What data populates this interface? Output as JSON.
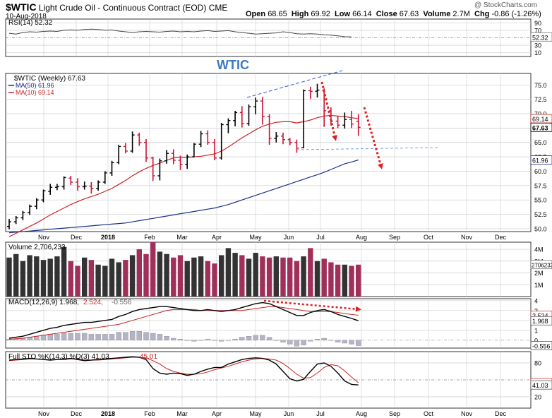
{
  "header": {
    "symbol": "$WTIC",
    "name": "Light Crude Oil - Continuous Contract (EOD)",
    "exchange": "CME",
    "date": "10-Aug-2018",
    "watermark": "@ StockCharts.com",
    "open_label": "Open",
    "open": "68.65",
    "high_label": "High",
    "high": "69.92",
    "low_label": "Low",
    "low": "66.14",
    "close_label": "Close",
    "close": "67.63",
    "volume_label": "Volume",
    "volume": "2.7M",
    "chg_label": "Chg",
    "chg": "-0.86 (-1.26%)"
  },
  "annotation": "WTIC",
  "colors": {
    "up": "#000000",
    "down": "#cc1133",
    "ma50": "#1a2f8a",
    "ma10": "#cc2222",
    "vol_up": "#333333",
    "vol_down": "#a0305a",
    "arrow": "#e02020",
    "trend": "#3355dd",
    "grid": "#cccccc"
  },
  "chart_data": [
    {
      "panel": "rsi",
      "type": "line",
      "legend": "RSI(14) 52.32",
      "ylim": [
        0,
        100
      ],
      "ticks": [
        "90",
        "70",
        "50",
        "52.32",
        "30",
        "10"
      ],
      "levels": [
        70,
        30
      ],
      "values": [
        62,
        60,
        64,
        66,
        65,
        67,
        68,
        67,
        70,
        71,
        70,
        72,
        73,
        72,
        70,
        71,
        68,
        66,
        64,
        66,
        67,
        66,
        65,
        67,
        68,
        66,
        67,
        66,
        68,
        69,
        67,
        68,
        69,
        66,
        64,
        62,
        60,
        61,
        62,
        63,
        66,
        64,
        61,
        60,
        61,
        60,
        58,
        57,
        55,
        53,
        52.32
      ]
    },
    {
      "panel": "price",
      "type": "candlestick",
      "legend": [
        "$WTIC (Weekly) 67.63",
        "MA(50) 61.96",
        "MA(10) 69.14"
      ],
      "ylim": [
        49.5,
        77
      ],
      "y_ticks": [
        75.0,
        72.5,
        70.0,
        67.5,
        65.0,
        62.5,
        60.0,
        57.5,
        55.0,
        52.5,
        50.0
      ],
      "tags": {
        "ma10": "69.14",
        "close": "67.63",
        "ma50": "61.96"
      },
      "x_labels": [
        "Nov",
        "Dec",
        "2018",
        "Feb",
        "Mar",
        "Apr",
        "May",
        "Jun",
        "Jul",
        "Aug",
        "Sep",
        "Oct",
        "Nov",
        "Dec"
      ],
      "ohlc": [
        [
          50.4,
          51.7,
          49.9,
          51.2
        ],
        [
          51.2,
          52.2,
          50.8,
          51.9
        ],
        [
          51.9,
          53.1,
          51.5,
          52.8
        ],
        [
          52.8,
          54.2,
          52.4,
          53.9
        ],
        [
          53.9,
          55.3,
          53.4,
          55.0
        ],
        [
          55.0,
          56.8,
          54.6,
          56.6
        ],
        [
          56.5,
          57.8,
          55.9,
          57.2
        ],
        [
          57.2,
          57.8,
          56.7,
          57.3
        ],
        [
          57.3,
          59.1,
          56.8,
          58.9
        ],
        [
          58.8,
          59.2,
          57.6,
          58.1
        ],
        [
          58.1,
          58.8,
          56.6,
          57.3
        ],
        [
          57.3,
          58.2,
          56.8,
          57.4
        ],
        [
          57.4,
          58.1,
          56.1,
          57.0
        ],
        [
          57.0,
          58.4,
          56.6,
          58.1
        ],
        [
          58.1,
          60.0,
          57.8,
          59.7
        ],
        [
          59.7,
          61.8,
          59.2,
          61.5
        ],
        [
          61.5,
          64.6,
          61.2,
          64.3
        ],
        [
          64.3,
          64.9,
          63.1,
          63.5
        ],
        [
          63.5,
          66.9,
          63.2,
          66.3
        ],
        [
          66.3,
          66.7,
          64.4,
          65.0
        ],
        [
          65.0,
          65.6,
          61.6,
          62.3
        ],
        [
          62.3,
          62.5,
          58.3,
          59.2
        ],
        [
          59.2,
          62.2,
          58.4,
          61.8
        ],
        [
          61.8,
          63.7,
          61.3,
          63.1
        ],
        [
          63.1,
          63.8,
          61.2,
          61.9
        ],
        [
          61.9,
          62.7,
          60.2,
          61.2
        ],
        [
          61.2,
          62.9,
          60.4,
          62.5
        ],
        [
          62.5,
          64.9,
          62.4,
          64.7
        ],
        [
          64.7,
          67.0,
          64.2,
          66.5
        ],
        [
          66.5,
          67.1,
          64.6,
          65.0
        ],
        [
          65.0,
          65.6,
          61.9,
          62.3
        ],
        [
          62.3,
          68.4,
          62.0,
          68.1
        ],
        [
          68.1,
          69.2,
          66.6,
          68.8
        ],
        [
          68.8,
          70.5,
          67.8,
          70.2
        ],
        [
          70.2,
          71.3,
          67.6,
          68.3
        ],
        [
          68.3,
          71.6,
          67.9,
          71.2
        ],
        [
          71.2,
          72.8,
          69.9,
          72.2
        ],
        [
          72.2,
          72.9,
          68.1,
          69.5
        ],
        [
          69.5,
          69.9,
          64.6,
          65.7
        ],
        [
          65.7,
          66.8,
          65.0,
          66.1
        ],
        [
          66.1,
          66.7,
          64.7,
          65.5
        ],
        [
          65.5,
          65.8,
          64.5,
          65.0
        ],
        [
          65.0,
          65.5,
          63.2,
          64.0
        ],
        [
          64.1,
          74.2,
          64.0,
          74.0
        ],
        [
          74.0,
          74.7,
          72.6,
          73.9
        ],
        [
          73.9,
          75.2,
          72.8,
          74.1
        ],
        [
          74.1,
          74.4,
          67.7,
          70.5
        ],
        [
          70.5,
          71.1,
          67.9,
          68.7
        ],
        [
          68.7,
          69.6,
          67.5,
          68.0
        ],
        [
          68.0,
          70.2,
          67.4,
          69.0
        ],
        [
          69.0,
          70.5,
          67.5,
          68.2
        ],
        [
          68.65,
          69.92,
          66.14,
          67.63
        ]
      ],
      "ma10": [
        48.6,
        49.2,
        49.8,
        50.4,
        51.0,
        51.7,
        52.4,
        53.0,
        53.6,
        54.2,
        54.7,
        55.2,
        55.6,
        56.0,
        56.5,
        57.0,
        57.7,
        58.4,
        59.2,
        59.9,
        60.5,
        61.0,
        61.4,
        61.9,
        62.3,
        62.4,
        62.4,
        62.5,
        62.6,
        62.8,
        63.0,
        63.5,
        64.2,
        65.0,
        65.8,
        66.5,
        67.2,
        67.8,
        68.2,
        68.5,
        68.6,
        68.6,
        68.4,
        68.6,
        68.9,
        69.3,
        69.6,
        69.7,
        69.6,
        69.5,
        69.3,
        69.14
      ],
      "ma50": [
        49.3,
        49.4,
        49.5,
        49.6,
        49.7,
        49.8,
        49.9,
        50.0,
        50.1,
        50.2,
        50.3,
        50.4,
        50.5,
        50.6,
        50.7,
        50.8,
        50.9,
        51.0,
        51.2,
        51.4,
        51.6,
        51.8,
        52.0,
        52.2,
        52.4,
        52.6,
        52.8,
        53.0,
        53.2,
        53.4,
        53.6,
        53.9,
        54.2,
        54.6,
        55.0,
        55.4,
        55.8,
        56.2,
        56.6,
        57.0,
        57.4,
        57.8,
        58.2,
        58.6,
        59.0,
        59.4,
        59.8,
        60.3,
        60.8,
        61.3,
        61.6,
        61.96
      ]
    },
    {
      "panel": "volume",
      "type": "bar",
      "legend": "Volume 2,706,233",
      "ylim": [
        0,
        4.6
      ],
      "ticks": [
        "4M",
        "3M",
        "2706233",
        "2M",
        "1M"
      ],
      "values": [
        3.3,
        3.6,
        3.0,
        3.5,
        3.4,
        3.1,
        3.2,
        3.4,
        4.2,
        3.0,
        2.6,
        3.3,
        3.1,
        2.7,
        2.6,
        3.2,
        2.9,
        3.1,
        3.5,
        4.0,
        3.6,
        4.6,
        3.8,
        3.6,
        3.3,
        3.5,
        3.0,
        3.3,
        3.4,
        3.0,
        2.8,
        3.5,
        4.1,
        3.7,
        3.5,
        3.2,
        3.7,
        3.4,
        3.3,
        3.4,
        3.3,
        3.3,
        3.0,
        3.4,
        4.1,
        3.0,
        3.2,
        2.9,
        2.7,
        2.7,
        2.6,
        2.7
      ]
    },
    {
      "panel": "macd",
      "type": "line",
      "legend": [
        "MACD(12,26,9) 1.968,",
        "2.524,",
        "-0.556"
      ],
      "ylim": [
        -0.8,
        4.2
      ],
      "ticks": [
        "4",
        "3",
        "2.524",
        "1.968",
        "1",
        "0",
        "-0.556"
      ],
      "macd": [
        0.2,
        0.3,
        0.4,
        0.6,
        0.8,
        1.0,
        1.2,
        1.3,
        1.5,
        1.6,
        1.7,
        1.8,
        1.8,
        1.9,
        2.0,
        2.1,
        2.4,
        2.6,
        2.9,
        3.1,
        3.2,
        3.3,
        3.4,
        3.4,
        3.3,
        3.2,
        3.1,
        3.0,
        3.0,
        3.1,
        3.0,
        2.9,
        3.0,
        3.1,
        3.3,
        3.5,
        3.7,
        3.8,
        3.7,
        3.4,
        3.1,
        2.8,
        2.5,
        2.5,
        2.8,
        3.0,
        3.1,
        2.9,
        2.6,
        2.4,
        2.2,
        1.968
      ],
      "signal": [
        0.1,
        0.15,
        0.2,
        0.3,
        0.4,
        0.5,
        0.6,
        0.7,
        0.8,
        0.9,
        1.0,
        1.1,
        1.2,
        1.3,
        1.4,
        1.5,
        1.6,
        1.8,
        2.0,
        2.2,
        2.4,
        2.6,
        2.8,
        3.0,
        3.1,
        3.1,
        3.1,
        3.1,
        3.0,
        3.0,
        3.0,
        3.0,
        3.0,
        3.0,
        3.0,
        3.1,
        3.2,
        3.3,
        3.4,
        3.4,
        3.3,
        3.2,
        3.1,
        3.0,
        2.9,
        2.9,
        2.9,
        2.9,
        2.8,
        2.7,
        2.6,
        2.524
      ],
      "histogram": [
        0.1,
        0.15,
        0.2,
        0.3,
        0.4,
        0.5,
        0.6,
        0.6,
        0.7,
        0.7,
        0.7,
        0.7,
        0.6,
        0.6,
        0.6,
        0.6,
        0.8,
        0.8,
        0.9,
        0.9,
        0.8,
        0.7,
        0.6,
        0.4,
        0.2,
        0.1,
        0.0,
        -0.1,
        0.0,
        0.1,
        0.0,
        -0.1,
        0.0,
        0.1,
        0.3,
        0.4,
        0.5,
        0.5,
        0.3,
        0.0,
        -0.2,
        -0.4,
        -0.6,
        -0.5,
        -0.1,
        0.1,
        0.2,
        0.0,
        -0.2,
        -0.3,
        -0.4,
        -0.556
      ]
    },
    {
      "panel": "sto",
      "type": "line",
      "legend": [
        "Full STO %K(14,3) %D(3) 41.03,",
        "45.01"
      ],
      "ylim": [
        0,
        100
      ],
      "ticks": [
        "80",
        "45.01",
        "41.03",
        "20"
      ],
      "levels": [
        80,
        20
      ],
      "k": [
        85,
        86,
        87,
        88,
        87,
        86,
        85,
        86,
        87,
        88,
        86,
        84,
        85,
        86,
        87,
        88,
        89,
        90,
        91,
        90,
        86,
        70,
        62,
        60,
        62,
        61,
        58,
        60,
        65,
        69,
        72,
        72,
        78,
        82,
        86,
        88,
        89,
        88,
        85,
        78,
        65,
        52,
        48,
        51,
        65,
        78,
        80,
        74,
        62,
        48,
        42,
        41.03
      ],
      "d": [
        84,
        85,
        86,
        87,
        87,
        86,
        86,
        86,
        86,
        87,
        87,
        86,
        85,
        85,
        86,
        87,
        88,
        89,
        90,
        90,
        89,
        84,
        78,
        70,
        65,
        62,
        60,
        60,
        61,
        64,
        68,
        71,
        74,
        78,
        82,
        85,
        87,
        88,
        87,
        85,
        79,
        70,
        60,
        53,
        54,
        62,
        72,
        77,
        75,
        66,
        55,
        45.01
      ]
    }
  ]
}
